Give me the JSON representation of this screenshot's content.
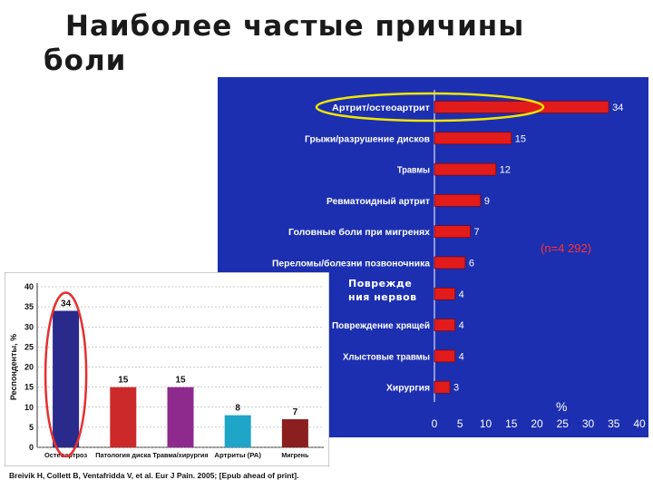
{
  "slide": {
    "title_line1": "Наиболее частые причины",
    "title_line2": "боли"
  },
  "chart_data": [
    {
      "type": "bar",
      "orientation": "horizontal",
      "categories": [
        "Артрит/остеоартрит",
        "Грыжи/разрушение дисков",
        "Травмы",
        "Ревматоидный артрит",
        "Головные боли при мигренях",
        "Переломы/болезни позвоночника",
        "Повреждения нервов",
        "Повреждение хрящей",
        "Хлыстовые травмы",
        "Хирургия"
      ],
      "values": [
        34,
        15,
        12,
        9,
        7,
        6,
        4,
        4,
        4,
        3
      ],
      "value_labels": [
        "34",
        "15",
        "12",
        "9",
        "7",
        "6",
        "4",
        "4",
        "4",
        "3"
      ],
      "xlim": [
        0,
        40
      ],
      "xticks": [
        "0",
        "5",
        "10",
        "15",
        "20",
        "25",
        "30",
        "35",
        "40"
      ],
      "xlabel": "%",
      "annotation": "(n=4 292)",
      "overlay_label": "Поврежде ния нервов",
      "highlighted_category": "Артрит/остеоартрит",
      "colors": {
        "background": "#1c2fb0",
        "bar": "#e21b1b",
        "text": "#ffffff",
        "highlight": "#f2e600"
      }
    },
    {
      "type": "bar",
      "categories": [
        "Остеоартроз",
        "Патология диска",
        "Травма/хирургия",
        "Артриты (РА)",
        "Мигрень"
      ],
      "values": [
        34,
        15,
        15,
        8,
        7
      ],
      "value_labels": [
        "34",
        "15",
        "15",
        "8",
        "7"
      ],
      "colors": [
        "#2a2a8c",
        "#cc2a2a",
        "#8e2a8e",
        "#1fa5c8",
        "#8b1e1e"
      ],
      "ylim": [
        0,
        40
      ],
      "yticks": [
        "0",
        "5",
        "10",
        "15",
        "20",
        "25",
        "30",
        "35",
        "40"
      ],
      "ylabel": "Респонденты, %",
      "highlighted_category": "Остеоартроз",
      "highlight_color": "#e53030",
      "citation": "Breivik H, Collett B, Ventafridda V, et al. Eur J Pain. 2005; [Epub ahead of print]."
    }
  ]
}
